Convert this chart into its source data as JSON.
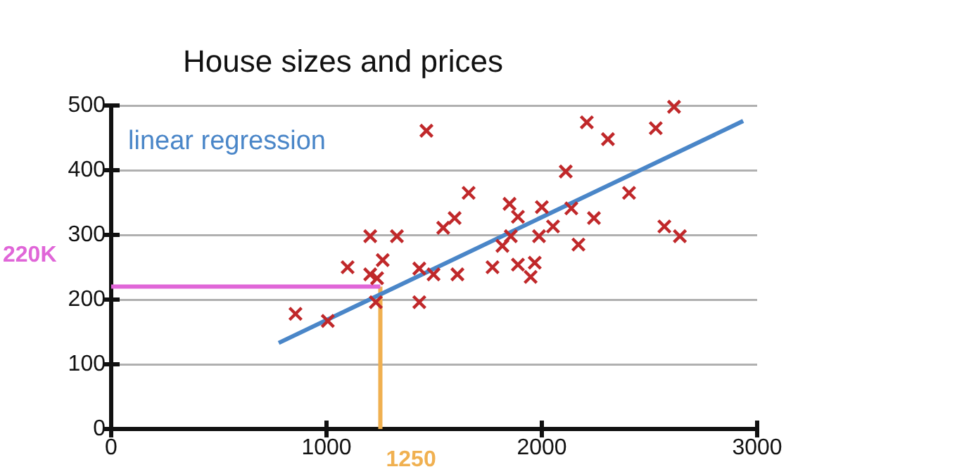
{
  "chart_data": {
    "type": "scatter",
    "title": "House sizes and prices",
    "xlim": [
      0,
      3000
    ],
    "xticks": [
      0,
      1000,
      2000,
      3000
    ],
    "ylim": [
      0,
      500
    ],
    "yticks": [
      0,
      100,
      200,
      300,
      400,
      500
    ],
    "grid": "y",
    "legend": false,
    "marker": "cross",
    "series": [
      {
        "color": "#c0282a",
        "x": [
          856,
          1006,
          1098,
          1203,
          1327,
          1203,
          1261,
          1229,
          1235,
          1431,
          1431,
          1464,
          1497,
          1608,
          1595,
          1542,
          1660,
          1771,
          1850,
          1889,
          1817,
          1856,
          1889,
          1948,
          1967,
          2000,
          1987,
          2052,
          2111,
          2137,
          2170,
          2242,
          2209,
          2307,
          2405,
          2529,
          2614,
          2569,
          2641
        ],
        "values": [
          178,
          167,
          250,
          298,
          298,
          239,
          261,
          196,
          233,
          196,
          248,
          461,
          239,
          239,
          326,
          311,
          365,
          250,
          348,
          328,
          283,
          298,
          254,
          235,
          257,
          343,
          298,
          313,
          398,
          341,
          285,
          326,
          474,
          448,
          365,
          465,
          498,
          313,
          298
        ]
      },
      {
        "type": "line",
        "name": "linear regression",
        "color": "#4a86c8",
        "x": [
          778,
          2935
        ],
        "values": [
          133,
          476
        ],
        "marker": "none"
      },
      {
        "type": "line",
        "color": "#e066d8",
        "x": [
          0,
          1250
        ],
        "values": [
          220,
          220
        ],
        "marker": "none"
      },
      {
        "type": "line",
        "color": "#f0b050",
        "x": [
          1250,
          1250
        ],
        "values": [
          0,
          220
        ],
        "marker": "none"
      }
    ],
    "annotations": [
      {
        "text": "220K",
        "x": 0,
        "y": 220
      },
      {
        "text": "1250",
        "x": 1250,
        "y": 0
      }
    ]
  }
}
